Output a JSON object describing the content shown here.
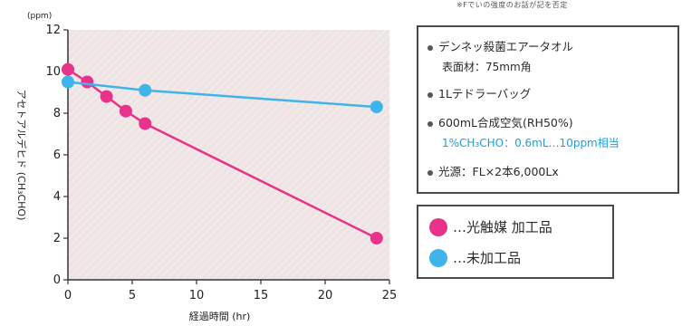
{
  "top_note": "※Fでいの強度のお話が記を否定",
  "conditions": [
    {
      "text": "デンネッ殺菌エアータオル",
      "sub": "表面材：75mm角"
    },
    {
      "text": "1Lテドラーバッグ"
    },
    {
      "text": "600mL合成空気(RH50%)",
      "sub": "1%CH₃CHO：0.6mL…10ppm相当"
    },
    {
      "text": "光源：FL×2本6,000Lx"
    }
  ],
  "legend": [
    {
      "label": "…光触媒 加工品",
      "color": "#e8338a"
    },
    {
      "label": "…未加工品",
      "color": "#3fb4ec"
    }
  ],
  "chart_data": {
    "type": "line",
    "ylabel": "アセトアルデヒド (CH₃CHO)",
    "yunit": "(ppm)",
    "xlabel": "経過時間 (hr)",
    "xlim": [
      0,
      25
    ],
    "ylim": [
      0,
      12
    ],
    "xticks": [
      0,
      5,
      10,
      15,
      20,
      25
    ],
    "yticks": [
      0,
      2,
      4,
      6,
      8,
      10,
      12
    ],
    "background": "#eee4e4",
    "series": [
      {
        "name": "…光触媒 加工品",
        "color": "#e8338a",
        "x": [
          0,
          1.5,
          3,
          4.5,
          6,
          24
        ],
        "y": [
          10.1,
          9.5,
          8.8,
          8.1,
          7.5,
          2.0
        ]
      },
      {
        "name": "…未加工品",
        "color": "#3fb4ec",
        "x": [
          0,
          6,
          24
        ],
        "y": [
          9.5,
          9.1,
          8.3
        ]
      }
    ]
  }
}
